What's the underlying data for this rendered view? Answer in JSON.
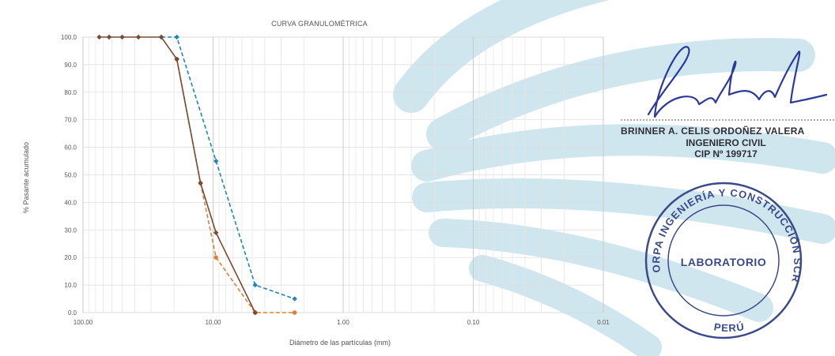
{
  "chart_data": {
    "type": "line",
    "title": "CURVA GRANULOMÉTRICA",
    "xlabel": "Diámetro de las partículas (mm)",
    "ylabel": "% Pasante acumulado",
    "x_scale": "log",
    "x_reversed": true,
    "xlim": [
      100,
      0.01
    ],
    "ylim": [
      0,
      100
    ],
    "x_ticks": [
      {
        "value": 100,
        "label": "100.00"
      },
      {
        "value": 10,
        "label": "10.00"
      },
      {
        "value": 1,
        "label": "1.00"
      },
      {
        "value": 0.1,
        "label": "0.10"
      },
      {
        "value": 0.01,
        "label": "0.01"
      }
    ],
    "y_ticks": [
      {
        "value": 0,
        "label": "0.0"
      },
      {
        "value": 10,
        "label": "10.0"
      },
      {
        "value": 20,
        "label": "20.0"
      },
      {
        "value": 30,
        "label": "30.0"
      },
      {
        "value": 40,
        "label": "40.0"
      },
      {
        "value": 50,
        "label": "50.0"
      },
      {
        "value": 60,
        "label": "60.0"
      },
      {
        "value": 70,
        "label": "70.0"
      },
      {
        "value": 80,
        "label": "80.0"
      },
      {
        "value": 90,
        "label": "90.0"
      },
      {
        "value": 100,
        "label": "100.0"
      }
    ],
    "grid": true,
    "series": [
      {
        "color": "#1f86b6",
        "line_style": "dashed",
        "marker": "diamond",
        "x": [
          25,
          19,
          9.5,
          4.75,
          2.36
        ],
        "y": [
          100,
          100,
          55,
          10,
          5
        ]
      },
      {
        "color": "#d9823c",
        "line_style": "dashed",
        "marker": "circle",
        "x": [
          19,
          12.5,
          9.5,
          4.75,
          2.36
        ],
        "y": [
          92,
          47,
          20,
          0,
          0
        ]
      },
      {
        "color": "#7a4a32",
        "line_style": "solid",
        "marker": "diamond",
        "x": [
          75,
          63,
          50,
          37.5,
          25,
          19,
          12.5,
          9.5,
          4.75
        ],
        "y": [
          100,
          100,
          100,
          100,
          100,
          92,
          47,
          29,
          0
        ]
      }
    ]
  },
  "signature": {
    "name": "BRINNER A. CELIS ORDOÑEZ VALERA",
    "title": "INGENIERO CIVIL",
    "cip": "CIP Nº 199717"
  },
  "stamp": {
    "ring_text": "ORPA INGENIERÍA Y CONSTRUCCIÓN SCRL",
    "bottom_text": "PERÚ",
    "center_text": "LABORATORIO",
    "color": "#3a4a8c"
  },
  "watermark_color": "#cfe6ef"
}
